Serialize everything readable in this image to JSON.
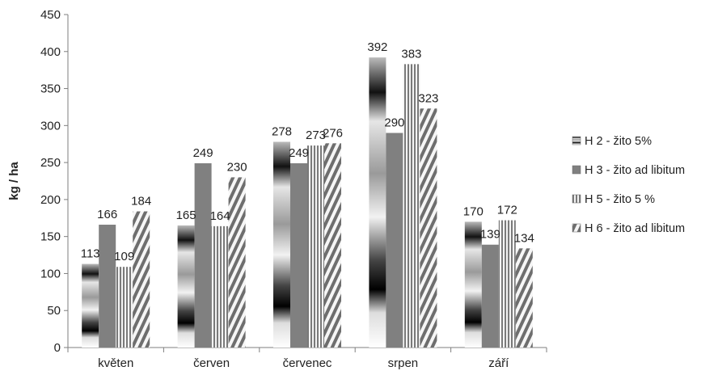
{
  "chart_data": {
    "type": "bar",
    "ylabel": "kg / ha",
    "xlabel": "",
    "ylim": [
      0,
      450
    ],
    "yticks": [
      0,
      50,
      100,
      150,
      200,
      250,
      300,
      350,
      400,
      450
    ],
    "categories": [
      "květen",
      "červen",
      "červenec",
      "srpen",
      "září"
    ],
    "series": [
      {
        "name": "H 2 - žito 5%",
        "values": [
          113,
          165,
          278,
          392,
          170
        ]
      },
      {
        "name": "H 3 - žito ad libitum",
        "values": [
          166,
          249,
          249,
          290,
          139
        ]
      },
      {
        "name": "H 5 - žito 5 %",
        "values": [
          109,
          164,
          273,
          383,
          172
        ]
      },
      {
        "name": "H 6 - žito ad libitum",
        "values": [
          184,
          230,
          276,
          323,
          134
        ]
      }
    ],
    "legend": "right",
    "grid": false
  }
}
